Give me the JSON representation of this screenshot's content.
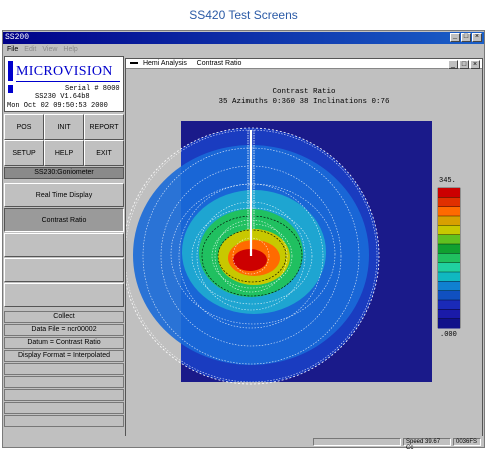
{
  "page_title": "SS420 Test Screens",
  "window": {
    "title": "SS200",
    "controls": [
      "_",
      "□",
      "×"
    ]
  },
  "menu": {
    "items": [
      {
        "label": "File",
        "dim": false
      },
      {
        "label": "Edit",
        "dim": true
      },
      {
        "label": "View",
        "dim": true
      },
      {
        "label": "Help",
        "dim": true
      }
    ]
  },
  "logo": {
    "text": "MICROVISION"
  },
  "device": {
    "serial": "Serial # 8000",
    "version": "SS230 V1.64b8",
    "datetime": "Mon Oct 02 09:50:53 2000"
  },
  "buttons": {
    "pos": "POS",
    "init": "INIT",
    "report": "REPORT",
    "setup": "SETUP",
    "help": "HELP",
    "exit": "EXIT"
  },
  "goniometer_header": "SS230:Goniometer",
  "modes": {
    "realtime": "Real Time Display",
    "contrast": "Contrast Ratio"
  },
  "info": {
    "collect": "Collect",
    "datafile": "Data File = ncr00002",
    "datum": "Datum = Contrast Ratio",
    "format": "Display Format = Interpolated"
  },
  "subwindow": {
    "title_left": "Hemi Analysis",
    "title_right": "Contrast Ratio"
  },
  "plot": {
    "title": "Contrast Ratio",
    "subtitle": "35 Azimuths 0:360  38 Inclinations 0:76",
    "scale_max": "345.",
    "scale_min": ".000",
    "colorbar": [
      "#cc0000",
      "#e03000",
      "#ff6a00",
      "#d8a000",
      "#c8c800",
      "#60c020",
      "#10a030",
      "#20c060",
      "#20d0a0",
      "#10b8c0",
      "#1080d0",
      "#1050c0",
      "#1a2ab8",
      "#1a1aa8",
      "#10108a"
    ]
  },
  "statusbar": {
    "speed_label": "Speed",
    "speed_value": "39.67 Cc",
    "code": "0036FS"
  }
}
